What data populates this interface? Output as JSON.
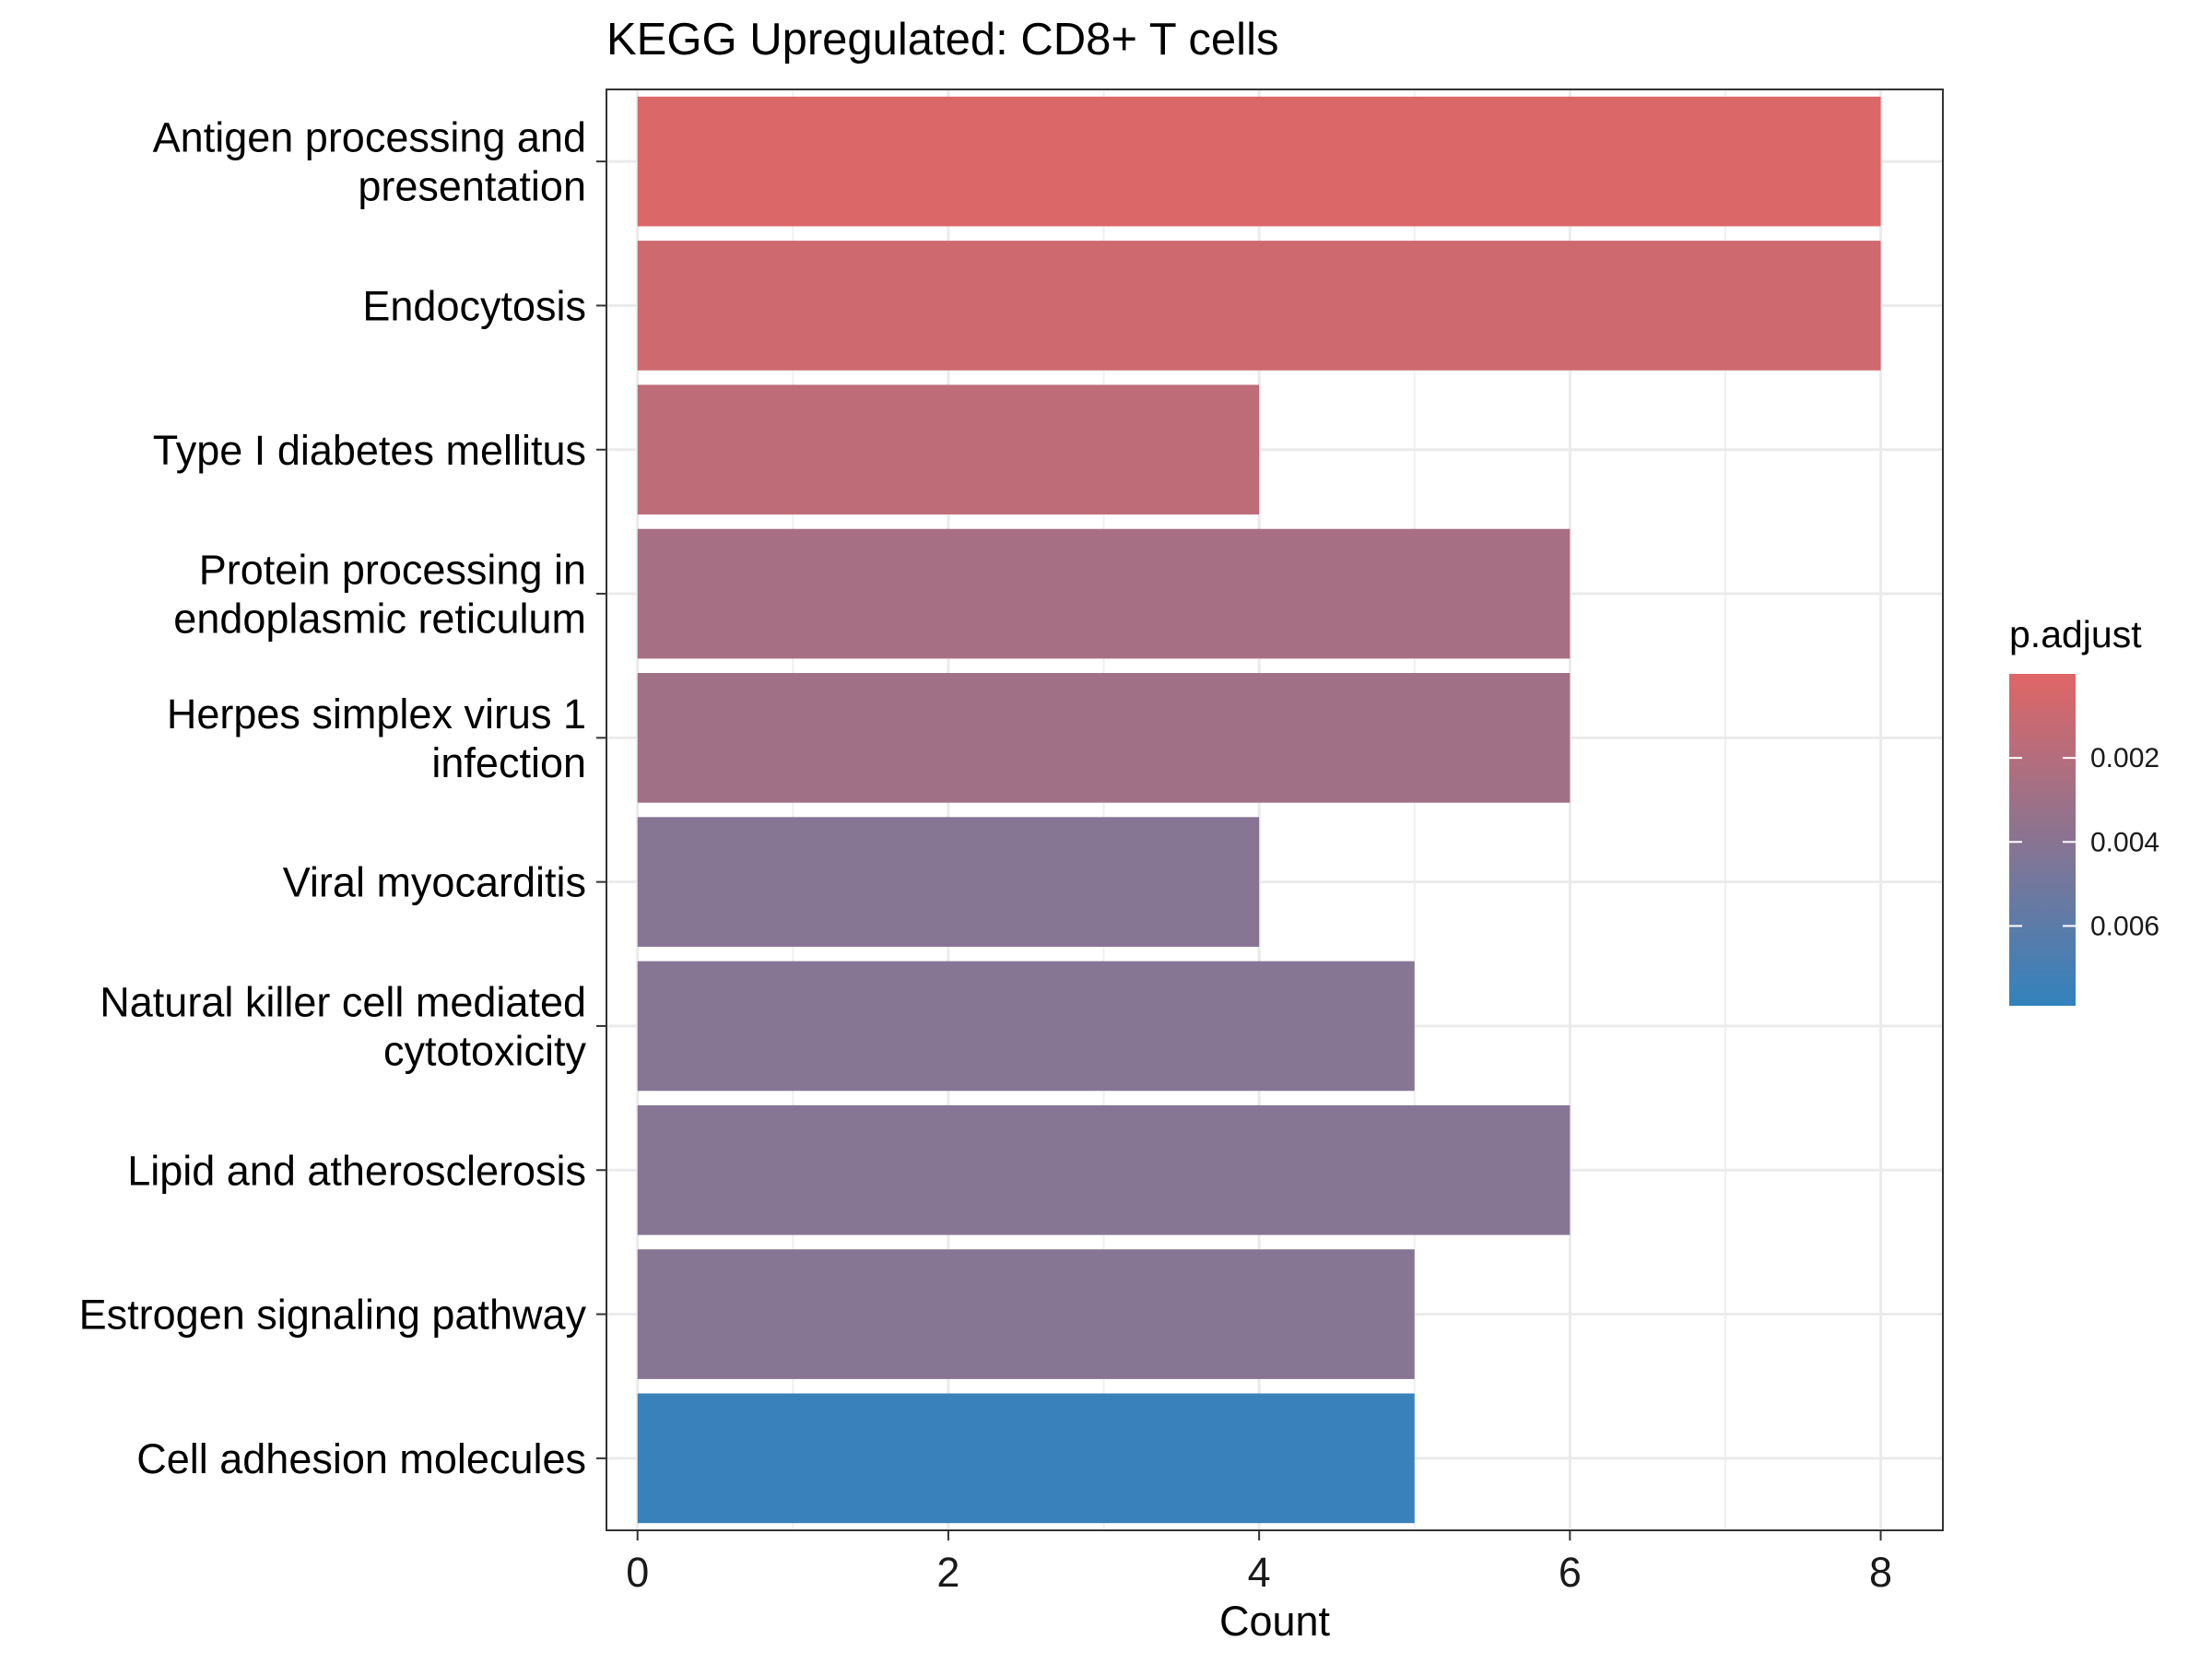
{
  "chart_data": {
    "type": "bar",
    "orientation": "horizontal",
    "title": "KEGG Upregulated: CD8+ T cells",
    "xlabel": "Count",
    "ylabel": "",
    "xlim": [
      -0.2,
      8.4
    ],
    "x_ticks": [
      0,
      2,
      4,
      6,
      8
    ],
    "grid": true,
    "categories": [
      "Antigen processing and presentation",
      "Endocytosis",
      "Type I diabetes mellitus",
      "Protein processing in endoplasmic reticulum",
      "Herpes simplex virus 1 infection",
      "Viral myocarditis",
      "Natural killer cell mediated cytotoxicity",
      "Lipid and atherosclerosis",
      "Estrogen signaling pathway",
      "Cell adhesion molecules"
    ],
    "category_label_lines": [
      [
        "Antigen processing and",
        "presentation"
      ],
      [
        "Endocytosis"
      ],
      [
        "Type I diabetes mellitus"
      ],
      [
        "Protein processing in",
        "endoplasmic reticulum"
      ],
      [
        "Herpes simplex virus 1",
        "infection"
      ],
      [
        "Viral myocarditis"
      ],
      [
        "Natural killer cell mediated",
        "cytotoxicity"
      ],
      [
        "Lipid and atherosclerosis"
      ],
      [
        "Estrogen signaling pathway"
      ],
      [
        "Cell adhesion molecules"
      ]
    ],
    "values": [
      8,
      8,
      4,
      6,
      6,
      4,
      5,
      6,
      5,
      5
    ],
    "color_values": [
      0.0002,
      0.0008,
      0.0016,
      0.0026,
      0.0029,
      0.0041,
      0.0041,
      0.0041,
      0.0041,
      0.0076
    ],
    "color_scale": {
      "name": "p.adjust",
      "low_color": "#e06666",
      "high_color": "#3282bd",
      "domain": [
        0.0,
        0.0079
      ],
      "ticks": [
        0.002,
        0.004,
        0.006
      ],
      "tick_labels": [
        "0.002",
        "0.004",
        "0.006"
      ]
    },
    "legend": {
      "title": "p.adjust",
      "placement": "right"
    }
  }
}
